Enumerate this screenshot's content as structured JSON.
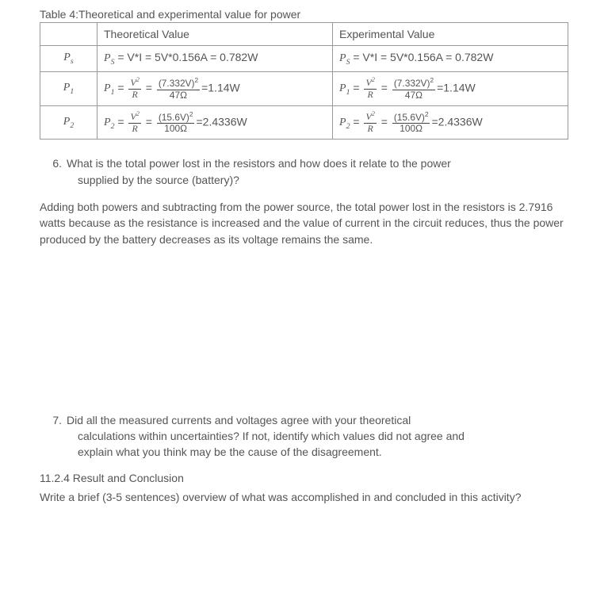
{
  "table": {
    "caption": "Table 4:Theoretical and experimental value for power",
    "headers": {
      "col1": "",
      "col2": "Theoretical Value",
      "col3": "Experimental Value"
    },
    "rows": [
      {
        "label_var": "P",
        "label_sub": "s",
        "theo_prefix": "P",
        "theo_sub": "S",
        "theo_rest": " = V*I = 5V*0.156A = 0.782W",
        "exp_prefix": "P",
        "exp_sub": "S",
        "exp_rest": " = V*I = 5V*0.156A = 0.782W"
      },
      {
        "label_var": "P",
        "label_sub": "1",
        "p_sub": "1",
        "v_num": "V",
        "v_sup": "2",
        "r_den": "R",
        "volt": "(7.332V)",
        "volt_sup": "2",
        "res": "47Ω",
        "result": "=1.14W"
      },
      {
        "label_var": "P",
        "label_sub": "2",
        "p_sub": "2",
        "v_num": "V",
        "v_sup": "2",
        "r_den": "R",
        "volt": "(15.6V)",
        "volt_sup": "2",
        "res": "100Ω",
        "result": "=2.4336W"
      }
    ]
  },
  "q6": {
    "num": "6.",
    "text1": "What is the total power lost in the resistors and how does it relate to the power",
    "text2": "supplied by the source (battery)?",
    "answer": "Adding both powers and subtracting from the power source, the total power lost in the resistors is 2.7916 watts because as the resistance is increased and the value of current in the circuit reduces, thus the power produced by the battery decreases as its voltage remains the same."
  },
  "q7": {
    "num": "7.",
    "text1": "Did all the measured currents and voltages agree with your theoretical",
    "text2": "calculations within uncertainties? If not, identify which values did not agree and",
    "text3": "explain what you think may be the cause of the disagreement."
  },
  "section": {
    "heading": "11.2.4 Result and Conclusion",
    "text": "Write a brief (3-5 sentences) overview of what was accomplished in and  concluded in this activity?"
  }
}
